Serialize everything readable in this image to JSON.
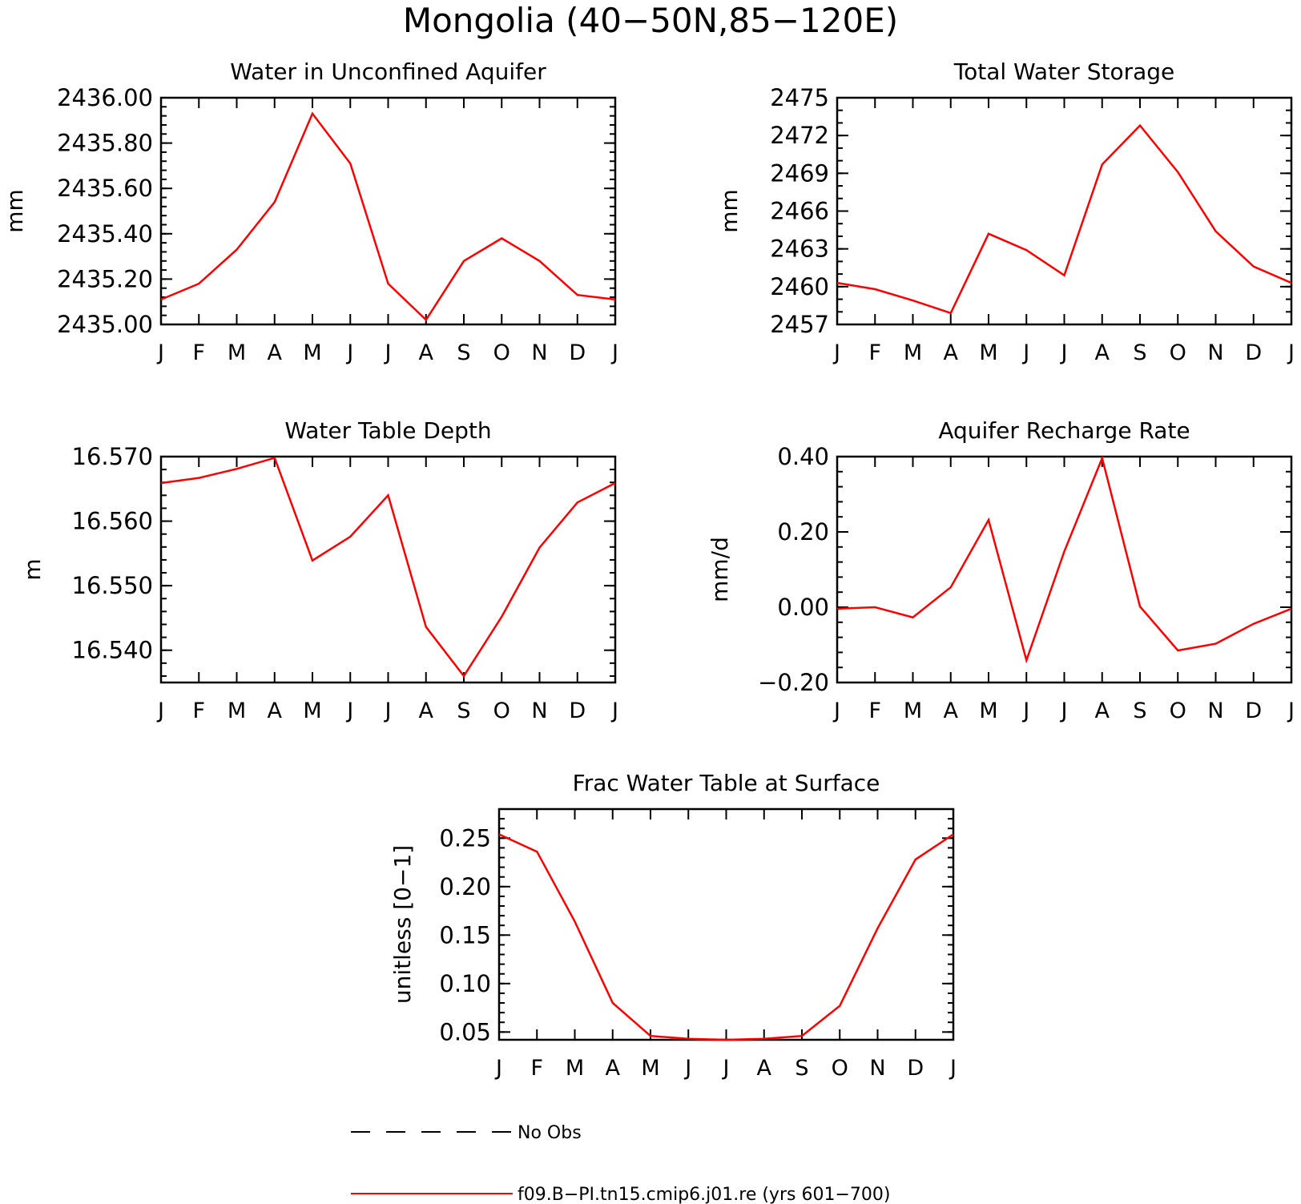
{
  "figure": {
    "title": "Mongolia (40−50N,85−120E)",
    "line_color": "#ff0000",
    "obs_color": "#000000"
  },
  "legend": {
    "obs_label": "No Obs",
    "model_label": "f09.B−PI.tn15.cmip6.j01.re (yrs 601−700)"
  },
  "chart_data": [
    {
      "type": "line",
      "title": "Water in Unconfined Aquifer",
      "ylabel": "mm",
      "categories": [
        "J",
        "F",
        "M",
        "A",
        "M",
        "J",
        "J",
        "A",
        "S",
        "O",
        "N",
        "D",
        "J"
      ],
      "ylim": [
        2435.0,
        2436.0
      ],
      "yticks": [
        2435.0,
        2435.2,
        2435.4,
        2435.6,
        2435.8,
        2436.0
      ],
      "ytick_labels": [
        "2435.00",
        "2435.20",
        "2435.40",
        "2435.60",
        "2435.80",
        "2436.00"
      ],
      "minor_step": 0.04,
      "series": [
        {
          "values": [
            2435.11,
            2435.18,
            2435.33,
            2435.54,
            2435.93,
            2435.71,
            2435.18,
            2435.02,
            2435.28,
            2435.38,
            2435.28,
            2435.13,
            2435.11
          ]
        }
      ]
    },
    {
      "type": "line",
      "title": "Total Water Storage",
      "ylabel": "mm",
      "categories": [
        "J",
        "F",
        "M",
        "A",
        "M",
        "J",
        "J",
        "A",
        "S",
        "O",
        "N",
        "D",
        "J"
      ],
      "ylim": [
        2457,
        2475
      ],
      "yticks": [
        2457,
        2460,
        2463,
        2466,
        2469,
        2472,
        2475
      ],
      "ytick_labels": [
        "2457",
        "2460",
        "2463",
        "2466",
        "2469",
        "2472",
        "2475"
      ],
      "minor_step": 1,
      "series": [
        {
          "values": [
            2460.3,
            2459.8,
            2458.9,
            2457.9,
            2464.2,
            2462.9,
            2460.9,
            2469.7,
            2472.8,
            2469.1,
            2464.4,
            2461.6,
            2460.3
          ]
        }
      ]
    },
    {
      "type": "line",
      "title": "Water Table Depth",
      "ylabel": "m",
      "categories": [
        "J",
        "F",
        "M",
        "A",
        "M",
        "J",
        "J",
        "A",
        "S",
        "O",
        "N",
        "D",
        "J"
      ],
      "ylim": [
        16.535,
        16.57
      ],
      "yticks": [
        16.54,
        16.55,
        16.56,
        16.57
      ],
      "ytick_labels": [
        "16.540",
        "16.550",
        "16.560",
        "16.570"
      ],
      "minor_step": 0.002,
      "series": [
        {
          "values": [
            16.5659,
            16.5667,
            16.5681,
            16.5698,
            16.5539,
            16.5576,
            16.564,
            16.5436,
            16.536,
            16.5452,
            16.5559,
            16.5629,
            16.5659
          ]
        }
      ]
    },
    {
      "type": "line",
      "title": "Aquifer Recharge Rate",
      "ylabel": "mm/d",
      "categories": [
        "J",
        "F",
        "M",
        "A",
        "M",
        "J",
        "J",
        "A",
        "S",
        "O",
        "N",
        "D",
        "J"
      ],
      "ylim": [
        -0.2,
        0.4
      ],
      "yticks": [
        -0.2,
        0.0,
        0.2,
        0.4
      ],
      "ytick_labels": [
        "−0.20",
        "0.00",
        "0.20",
        "0.40"
      ],
      "minor_step": 0.04,
      "series": [
        {
          "values": [
            -0.004,
            0.0,
            -0.027,
            0.053,
            0.232,
            -0.141,
            0.148,
            0.396,
            0.002,
            -0.115,
            -0.097,
            -0.044,
            -0.004
          ]
        }
      ]
    },
    {
      "type": "line",
      "title": "Frac Water Table at Surface",
      "ylabel": "unitless [0−1]",
      "categories": [
        "J",
        "F",
        "M",
        "A",
        "M",
        "J",
        "J",
        "A",
        "S",
        "O",
        "N",
        "D",
        "J"
      ],
      "ylim": [
        0.042,
        0.28
      ],
      "yticks": [
        0.05,
        0.1,
        0.15,
        0.2,
        0.25
      ],
      "ytick_labels": [
        "0.05",
        "0.10",
        "0.15",
        "0.20",
        "0.25"
      ],
      "minor_step": 0.01,
      "series": [
        {
          "values": [
            0.254,
            0.236,
            0.164,
            0.08,
            0.046,
            0.043,
            0.042,
            0.043,
            0.046,
            0.077,
            0.157,
            0.228,
            0.254
          ]
        }
      ]
    }
  ]
}
